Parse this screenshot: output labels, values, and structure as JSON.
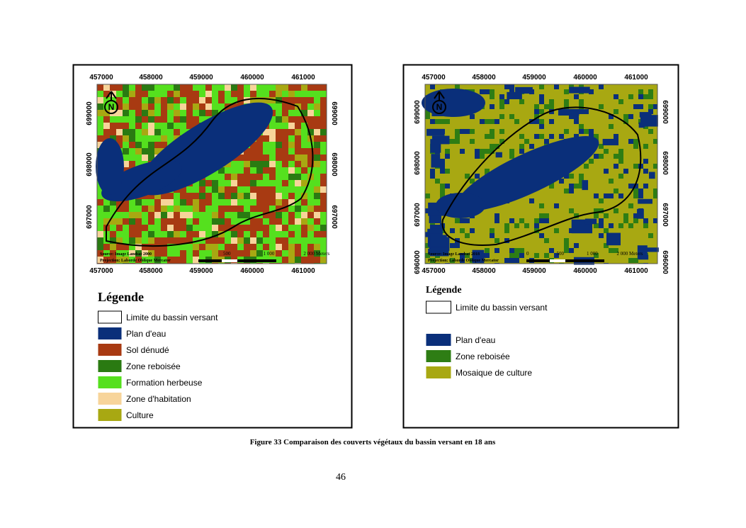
{
  "maps": [
    {
      "x_labels": [
        "457000",
        "458000",
        "459000",
        "460000",
        "461000"
      ],
      "y_labels": [
        "699000",
        "698000",
        "697000"
      ],
      "north": "N",
      "source": "Source: Image Landsat 2000",
      "projection": "Projection: Laborde Oblique Mercator",
      "scale_labels": [
        "500",
        "1 000",
        "2 000 Meters"
      ],
      "legend_title": "Légende",
      "legend": [
        {
          "label": "Limite du bassin versant",
          "color": "#ffffff"
        },
        {
          "label": "Plan d'eau",
          "color": "#0a2f7a"
        },
        {
          "label": "Sol dénudé",
          "color": "#a83a12"
        },
        {
          "label": "Zone reboisée",
          "color": "#2a7a12"
        },
        {
          "label": "Formation herbeuse",
          "color": "#55e01e"
        },
        {
          "label": "Zone d'habitation",
          "color": "#f7d49a"
        },
        {
          "label": "Culture",
          "color": "#a8a812"
        }
      ]
    },
    {
      "x_labels": [
        "457000",
        "458000",
        "459000",
        "460000",
        "461000"
      ],
      "y_labels": [
        "699000",
        "698000",
        "697000",
        "696000"
      ],
      "north": "N",
      "source": "Source: Image Landsat 2018",
      "projection": "Projection: Laborde Oblique Mercator",
      "scale_labels": [
        "0",
        "500",
        "1 000",
        "2 000 Meters"
      ],
      "legend_title": "Légende",
      "legend": [
        {
          "label": "Limite du bassin versant",
          "color": "#ffffff"
        },
        {
          "label": "Plan d'eau",
          "color": "#0a2f7a"
        },
        {
          "label": "Zone reboisée",
          "color": "#2e7d14"
        },
        {
          "label": "Mosaique de culture",
          "color": "#a8a812"
        }
      ]
    }
  ],
  "caption": "Figure 33 Comparaison des couverts végétaux du bassin versant en 18 ans",
  "page_number": "46"
}
